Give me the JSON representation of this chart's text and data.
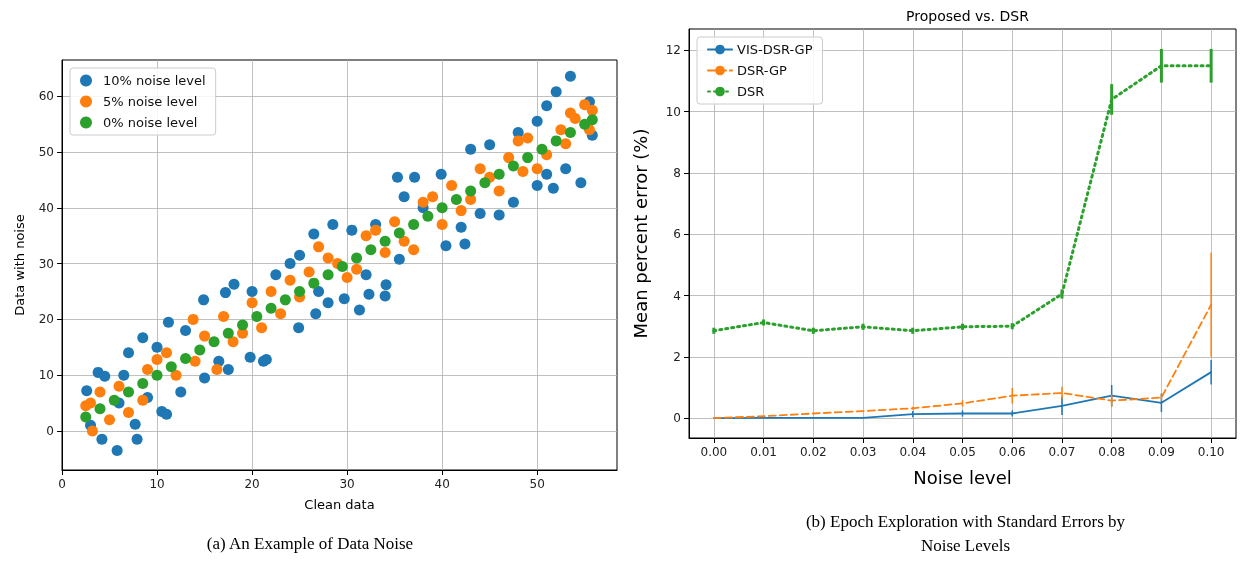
{
  "chart_data": [
    {
      "type": "scatter",
      "xlabel": "Clean data",
      "ylabel": "Data with noise",
      "annotations": [
        "(a) An Example of Data Noise"
      ],
      "xlim": [
        0,
        58.4
      ],
      "ylim": [
        -7,
        66.5
      ],
      "xticks": [
        0,
        10,
        20,
        30,
        40,
        50
      ],
      "yticks": [
        0,
        10,
        20,
        30,
        40,
        50,
        60
      ],
      "grid": true,
      "legend": "top left",
      "marker": "circle",
      "series": [
        {
          "name": "10% noise level",
          "color": "#1f77b4",
          "x": [
            5.8,
            4.2,
            7.9,
            7.7,
            10.5,
            11,
            2.6,
            3.8,
            7,
            8.5,
            11.2,
            14.9,
            17.2,
            18.1,
            20,
            19.8,
            21.2,
            21.5,
            24.9,
            26.7,
            26.5,
            28.5,
            31.3,
            29.7,
            32.3,
            34,
            34.1,
            35.5,
            35.3,
            37.1,
            40.4,
            42.4,
            39.9,
            43,
            45,
            50,
            51,
            52,
            53.5,
            54.6,
            51.7,
            51,
            53,
            55.5,
            55.8,
            42,
            47.5,
            50,
            33,
            30.5,
            24,
            22.5,
            15,
            16.5,
            9,
            12.5,
            3,
            6,
            13,
            28,
            38,
            44,
            46,
            48,
            36,
            25,
            17.5,
            6.5,
            4.5,
            10,
            27,
            32
          ],
          "values": [
            -3.5,
            -1.5,
            -1.5,
            1.2,
            3.5,
            3,
            7.2,
            10.5,
            14,
            16.7,
            19.5,
            23.5,
            24.8,
            26.3,
            25,
            13.2,
            12.5,
            12.8,
            18.5,
            21,
            35.3,
            37,
            21.7,
            23.7,
            24.5,
            24.2,
            26.2,
            30.8,
            45.5,
            45.5,
            33.2,
            33.5,
            46,
            50.5,
            51.3,
            55.5,
            58.3,
            60.8,
            63.6,
            44.5,
            43.5,
            46,
            47,
            59,
            53,
            36.5,
            41,
            44,
            37,
            36,
            30,
            28,
            9.5,
            12.5,
            6,
            7,
            1,
            5,
            18,
            23,
            40,
            39,
            38.7,
            53.5,
            42,
            31.5,
            11,
            10,
            9.8,
            15,
            25,
            28
          ]
        },
        {
          "name": "5% noise level",
          "color": "#ff7f0e",
          "x": [
            3.2,
            13.8,
            16.3,
            27,
            37,
            48,
            55,
            52.5,
            10,
            7,
            4,
            20,
            25,
            30,
            33,
            40,
            44,
            46,
            50,
            53,
            6,
            8.5,
            12,
            18,
            22,
            28,
            35,
            38,
            42,
            47,
            54,
            3,
            5,
            11,
            15,
            17,
            23,
            26,
            31,
            34,
            39,
            41,
            45,
            49,
            51,
            55.5,
            9,
            14,
            21,
            24,
            29,
            32,
            36,
            43,
            48.5,
            53.5,
            55.8,
            2.5,
            19
          ],
          "values": [
            0,
            20,
            11,
            33,
            32.5,
            52,
            58.5,
            54,
            12.8,
            3.3,
            7,
            23,
            24,
            27.5,
            36,
            37,
            47,
            43,
            47,
            51.5,
            8,
            5.5,
            10,
            16,
            25,
            31,
            37.5,
            41,
            39.5,
            49,
            56,
            5,
            2,
            14,
            17,
            20.5,
            21,
            28.5,
            29,
            32,
            42,
            44,
            45.5,
            52.5,
            49.5,
            54,
            11,
            12.5,
            18.5,
            27,
            30,
            35,
            34,
            41.5,
            46.5,
            57,
            57.5,
            4.5,
            17.5
          ]
        },
        {
          "name": "0% noise level",
          "color": "#2ca02c",
          "x": [
            2.5,
            4,
            5.5,
            7,
            8.5,
            10,
            11.5,
            13,
            14.5,
            16,
            17.5,
            19,
            20.5,
            22,
            23.5,
            25,
            26.5,
            28,
            29.5,
            31,
            32.5,
            34,
            35.5,
            37,
            38.5,
            40,
            41.5,
            43,
            44.5,
            46,
            47.5,
            49,
            50.5,
            52,
            53.5,
            55,
            55.8
          ],
          "values": [
            2.5,
            4,
            5.5,
            7,
            8.5,
            10,
            11.5,
            13,
            14.5,
            16,
            17.5,
            19,
            20.5,
            22,
            23.5,
            25,
            26.5,
            28,
            29.5,
            31,
            32.5,
            34,
            35.5,
            37,
            38.5,
            40,
            41.5,
            43,
            44.5,
            46,
            47.5,
            49,
            50.5,
            52,
            53.5,
            55,
            55.8
          ]
        }
      ]
    },
    {
      "type": "line",
      "title": "Proposed vs. DSR",
      "xlabel": "Noise level",
      "ylabel": "Mean percent error (%)",
      "annotations": [
        "(b) Epoch Exploration with Standard Errors by Noise Levels"
      ],
      "x": [
        0,
        0.01,
        0.02,
        0.03,
        0.04,
        0.05,
        0.06,
        0.07,
        0.08,
        0.09,
        0.1
      ],
      "xlim": [
        -0.005,
        0.105
      ],
      "ylim": [
        -0.65,
        12.7
      ],
      "xticks": [
        {
          "value": 0,
          "label": "0.00"
        },
        0.01,
        0.02,
        0.03,
        0.04,
        0.05,
        0.06,
        0.07,
        0.08,
        0.09,
        {
          "value": 0.1,
          "label": "0.10"
        }
      ],
      "yticks": [
        0,
        2,
        4,
        6,
        8,
        10,
        12
      ],
      "grid": true,
      "legend": "top left",
      "marker": "none",
      "series": [
        {
          "name": "VIS-DSR-GP",
          "color": "#1f77b4",
          "line_style": "solid",
          "values": [
            0,
            0.01,
            0.01,
            0.01,
            0.13,
            0.15,
            0.15,
            0.4,
            0.73,
            0.5,
            1.5
          ],
          "errors": [
            null,
            null,
            null,
            null,
            0.1,
            0.1,
            0.1,
            0.3,
            0.35,
            0.3,
            0.4
          ]
        },
        {
          "name": "DSR-GP",
          "color": "#ff7f0e",
          "line_style": "dashed",
          "values": [
            0,
            0.06,
            0.15,
            0.23,
            0.32,
            0.48,
            0.73,
            0.82,
            0.57,
            0.67,
            3.7
          ],
          "errors": [
            null,
            null,
            null,
            null,
            0.05,
            0.1,
            0.25,
            0.2,
            0.2,
            0.1,
            1.7
          ]
        },
        {
          "name": "DSR",
          "color": "#2ca02c",
          "line_style": "dotted",
          "values": [
            2.85,
            3.12,
            2.85,
            2.98,
            2.85,
            2.98,
            3.0,
            4.05,
            10.4,
            11.5,
            11.5
          ],
          "errors": [
            0.1,
            0.1,
            0.1,
            0.1,
            0.1,
            0.1,
            0.1,
            0.15,
            0.5,
            0.55,
            0.55
          ]
        }
      ]
    }
  ]
}
